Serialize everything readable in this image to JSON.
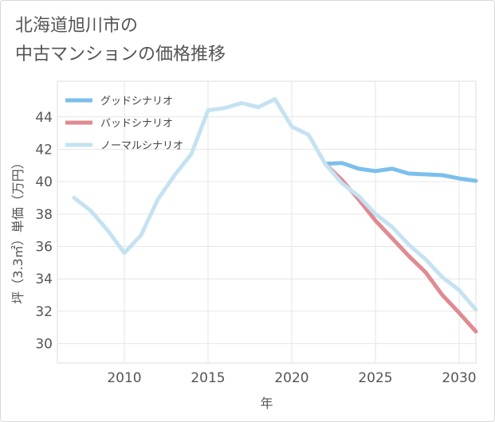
{
  "title_line1": "北海道旭川市の",
  "title_line2": "中古マンションの価格推移",
  "chart_data": {
    "type": "line",
    "xlabel": "年",
    "ylabel": "坪（3.3㎡）単価（万円）",
    "xlim": [
      2006,
      2031
    ],
    "ylim": [
      28.8,
      46.2
    ],
    "xticks": [
      2010,
      2015,
      2020,
      2025,
      2030
    ],
    "yticks": [
      30,
      32,
      34,
      36,
      38,
      40,
      42,
      44
    ],
    "grid": true,
    "legend_position": "top-left",
    "series": [
      {
        "name": "グッドシナリオ",
        "color": "#7bbfec",
        "x": [
          2022,
          2023,
          2024,
          2025,
          2026,
          2027,
          2028,
          2029,
          2030,
          2031
        ],
        "y": [
          41.1,
          41.15,
          40.8,
          40.65,
          40.8,
          40.5,
          40.45,
          40.4,
          40.2,
          40.05
        ]
      },
      {
        "name": "バッドシナリオ",
        "color": "#e08a92",
        "x": [
          2022,
          2023,
          2024,
          2025,
          2026,
          2027,
          2028,
          2029,
          2030,
          2031
        ],
        "y": [
          41.1,
          40.1,
          38.9,
          37.6,
          36.5,
          35.4,
          34.4,
          33.0,
          31.9,
          30.75
        ]
      },
      {
        "name": "ノーマルシナリオ",
        "color": "#c5e2f1",
        "x": [
          2007,
          2008,
          2009,
          2010,
          2011,
          2012,
          2013,
          2014,
          2015,
          2016,
          2017,
          2018,
          2019,
          2020,
          2021,
          2022,
          2023,
          2024,
          2025,
          2026,
          2027,
          2028,
          2029,
          2030,
          2031
        ],
        "y": [
          39.0,
          38.2,
          37.0,
          35.6,
          36.7,
          38.9,
          40.4,
          41.7,
          44.4,
          44.55,
          44.85,
          44.6,
          45.1,
          43.4,
          42.9,
          41.1,
          39.9,
          39.1,
          38.0,
          37.2,
          36.1,
          35.2,
          34.1,
          33.3,
          32.1
        ]
      }
    ]
  }
}
